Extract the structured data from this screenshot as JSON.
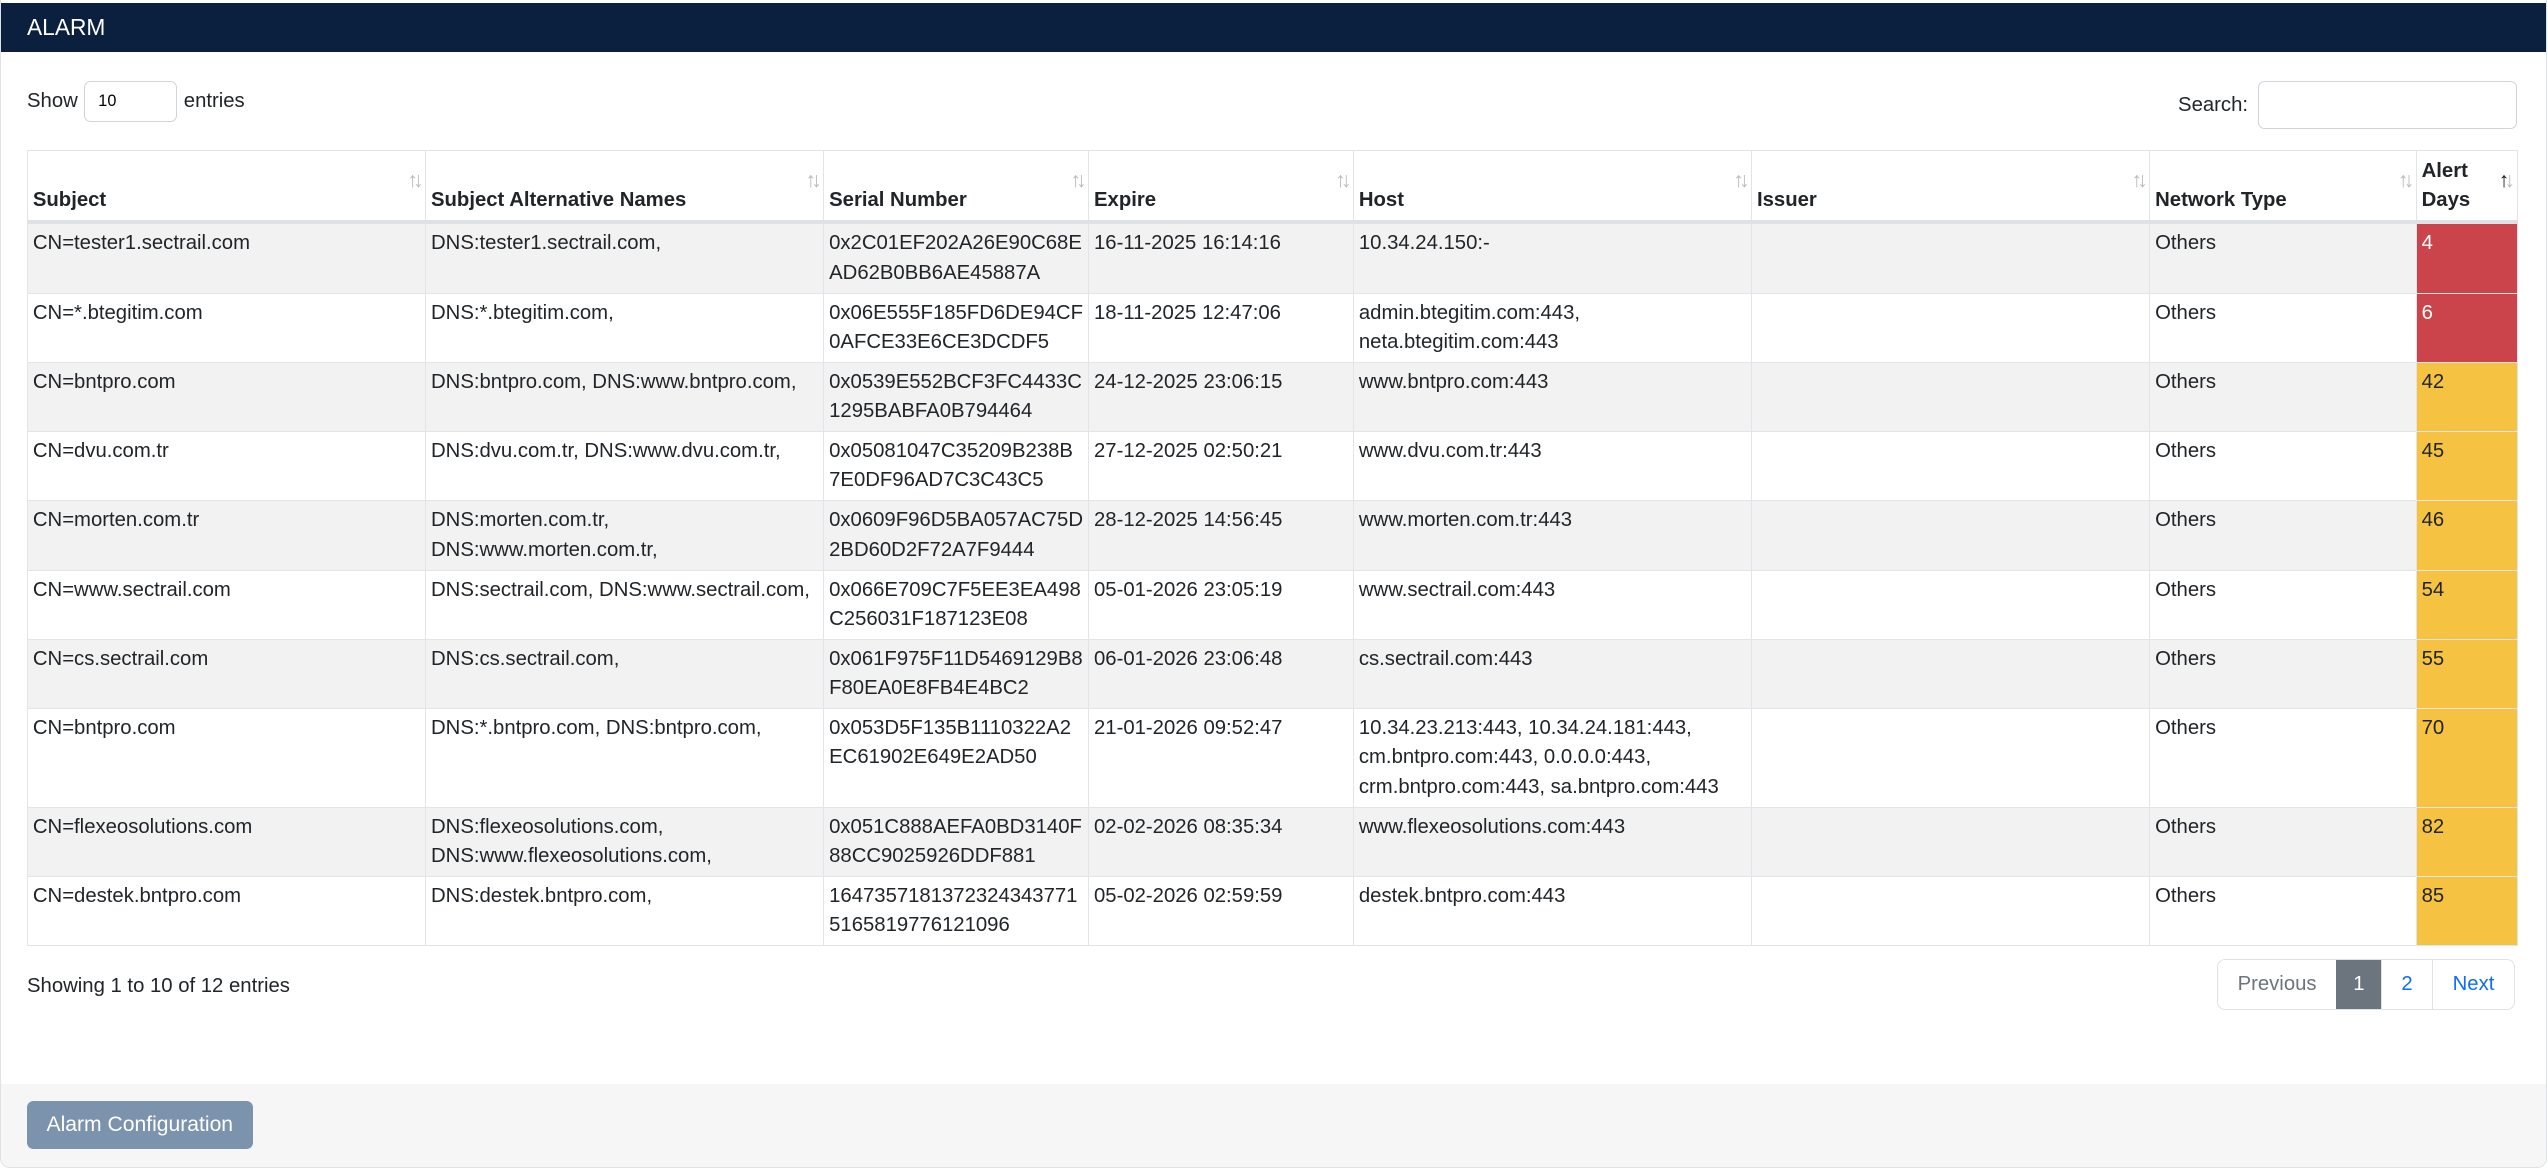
{
  "title": "ALARM",
  "length": {
    "show_label": "Show",
    "value": "10",
    "entries_label": "entries"
  },
  "search": {
    "label": "Search:",
    "value": ""
  },
  "columns": [
    "Subject",
    "Subject Alternative Names",
    "Serial Number",
    "Expire",
    "Host",
    "Issuer",
    "Network Type",
    "Alert Days"
  ],
  "rows": [
    {
      "subject": "CN=tester1.sectrail.com",
      "san": "DNS:tester1.sectrail.com,",
      "serial": "0x2C01EF202A26E90C68EAD62B0BB6AE45887A",
      "expire": "16-11-2025 16:14:16",
      "host": "10.34.24.150:-",
      "issuer": "",
      "network": "Others",
      "days": "4",
      "level": "red"
    },
    {
      "subject": "CN=*.btegitim.com",
      "san": "DNS:*.btegitim.com,",
      "serial": "0x06E555F185FD6DE94CF0AFCE33E6CE3DCDF5",
      "expire": "18-11-2025 12:47:06",
      "host": "admin.btegitim.com:443, neta.btegitim.com:443",
      "issuer": "",
      "network": "Others",
      "days": "6",
      "level": "red"
    },
    {
      "subject": "CN=bntpro.com",
      "san": "DNS:bntpro.com, DNS:www.bntpro.com,",
      "serial": "0x0539E552BCF3FC4433C1295BABFA0B794464",
      "expire": "24-12-2025 23:06:15",
      "host": "www.bntpro.com:443",
      "issuer": "",
      "network": "Others",
      "days": "42",
      "level": "yellow"
    },
    {
      "subject": "CN=dvu.com.tr",
      "san": "DNS:dvu.com.tr, DNS:www.dvu.com.tr,",
      "serial": "0x05081047C35209B238B7E0DF96AD7C3C43C5",
      "expire": "27-12-2025 02:50:21",
      "host": "www.dvu.com.tr:443",
      "issuer": "",
      "network": "Others",
      "days": "45",
      "level": "yellow"
    },
    {
      "subject": "CN=morten.com.tr",
      "san": "DNS:morten.com.tr, DNS:www.morten.com.tr,",
      "serial": "0x0609F96D5BA057AC75D2BD60D2F72A7F9444",
      "expire": "28-12-2025 14:56:45",
      "host": "www.morten.com.tr:443",
      "issuer": "",
      "network": "Others",
      "days": "46",
      "level": "yellow"
    },
    {
      "subject": "CN=www.sectrail.com",
      "san": "DNS:sectrail.com, DNS:www.sectrail.com,",
      "serial": "0x066E709C7F5EE3EA498C256031F187123E08",
      "expire": "05-01-2026 23:05:19",
      "host": "www.sectrail.com:443",
      "issuer": "",
      "network": "Others",
      "days": "54",
      "level": "yellow"
    },
    {
      "subject": "CN=cs.sectrail.com",
      "san": "DNS:cs.sectrail.com,",
      "serial": "0x061F975F11D5469129B8F80EA0E8FB4E4BC2",
      "expire": "06-01-2026 23:06:48",
      "host": "cs.sectrail.com:443",
      "issuer": "",
      "network": "Others",
      "days": "55",
      "level": "yellow"
    },
    {
      "subject": "CN=bntpro.com",
      "san": "DNS:*.bntpro.com, DNS:bntpro.com,",
      "serial": "0x053D5F135B1110322A2EC61902E649E2AD50",
      "expire": "21-01-2026 09:52:47",
      "host": "10.34.23.213:443, 10.34.24.181:443, cm.bntpro.com:443, 0.0.0.0:443, crm.bntpro.com:443, sa.bntpro.com:443",
      "issuer": "",
      "network": "Others",
      "days": "70",
      "level": "yellow"
    },
    {
      "subject": "CN=flexeosolutions.com",
      "san": "DNS:flexeosolutions.com, DNS:www.flexeosolutions.com,",
      "serial": "0x051C888AEFA0BD3140F88CC9025926DDF881",
      "expire": "02-02-2026 08:35:34",
      "host": "www.flexeosolutions.com:443",
      "issuer": "",
      "network": "Others",
      "days": "82",
      "level": "yellow"
    },
    {
      "subject": "CN=destek.bntpro.com",
      "san": "DNS:destek.bntpro.com,",
      "serial": "16473571813723243437715165819776121096",
      "expire": "05-02-2026 02:59:59",
      "host": "destek.bntpro.com:443",
      "issuer": "",
      "network": "Others",
      "days": "85",
      "level": "yellow"
    }
  ],
  "info": "Showing 1 to 10 of 12 entries",
  "pagination": {
    "previous": "Previous",
    "pages": [
      "1",
      "2"
    ],
    "next": "Next"
  },
  "footer": {
    "button": "Alarm Configuration"
  },
  "colors": {
    "header": "#0b1f3f",
    "red": "#cc444b",
    "yellow": "#f5c242"
  }
}
